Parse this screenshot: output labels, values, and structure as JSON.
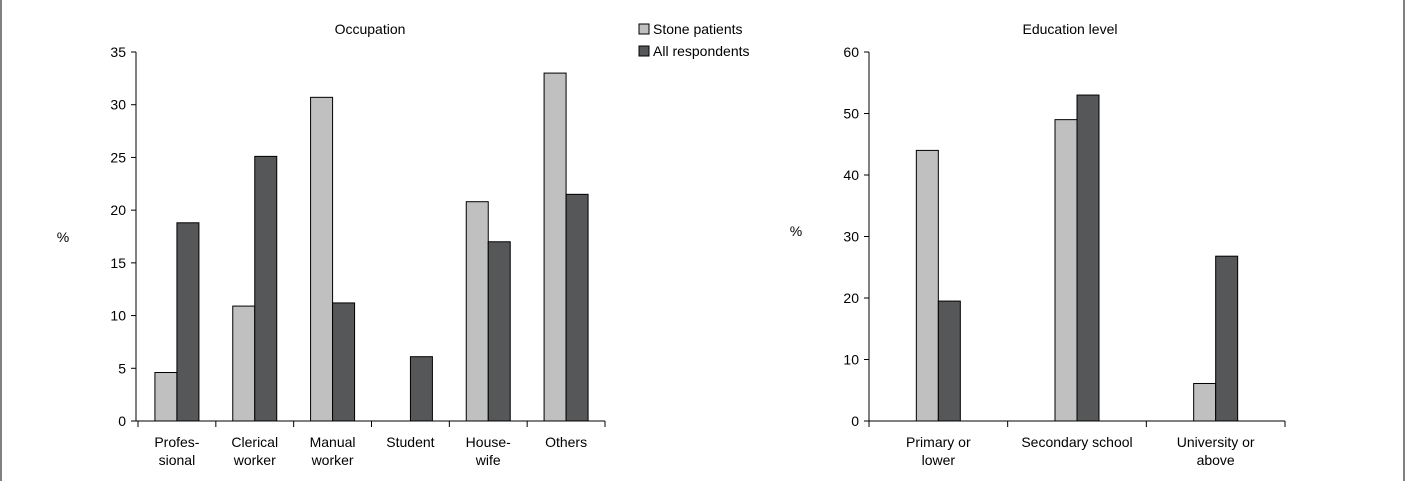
{
  "legend": {
    "items": [
      {
        "label": "Stone patients",
        "color": "#c0c0c0"
      },
      {
        "label": "All respondents",
        "color": "#555759"
      }
    ]
  },
  "chart_data": [
    {
      "type": "bar",
      "title": "Occupation",
      "ylabel": "%",
      "xlabel": "",
      "ylim": [
        0,
        35
      ],
      "yticks": [
        0,
        5,
        10,
        15,
        20,
        25,
        30,
        35
      ],
      "grid": false,
      "legend_placement": "top-right",
      "categories": [
        [
          "Profes-",
          "sional"
        ],
        [
          "Clerical",
          "worker"
        ],
        [
          "Manual",
          "worker"
        ],
        [
          "Student"
        ],
        [
          "House-",
          "wife"
        ],
        [
          "Others"
        ]
      ],
      "series": [
        {
          "name": "Stone patients",
          "color": "#c0c0c0",
          "values": [
            4.6,
            10.9,
            30.7,
            0,
            20.8,
            33.0
          ]
        },
        {
          "name": "All respondents",
          "color": "#555759",
          "values": [
            18.8,
            25.1,
            11.2,
            6.1,
            17.0,
            21.5
          ]
        }
      ]
    },
    {
      "type": "bar",
      "title": "Education level",
      "ylabel": "%",
      "xlabel": "",
      "ylim": [
        0,
        60
      ],
      "yticks": [
        0,
        10,
        20,
        30,
        40,
        50,
        60
      ],
      "grid": false,
      "categories": [
        [
          "Primary or",
          "lower"
        ],
        [
          "Secondary school"
        ],
        [
          "University or",
          "above"
        ]
      ],
      "series": [
        {
          "name": "Stone patients",
          "color": "#c0c0c0",
          "values": [
            44.0,
            49.0,
            6.1
          ]
        },
        {
          "name": "All respondents",
          "color": "#555759",
          "values": [
            19.5,
            53.0,
            26.8
          ]
        }
      ]
    }
  ]
}
